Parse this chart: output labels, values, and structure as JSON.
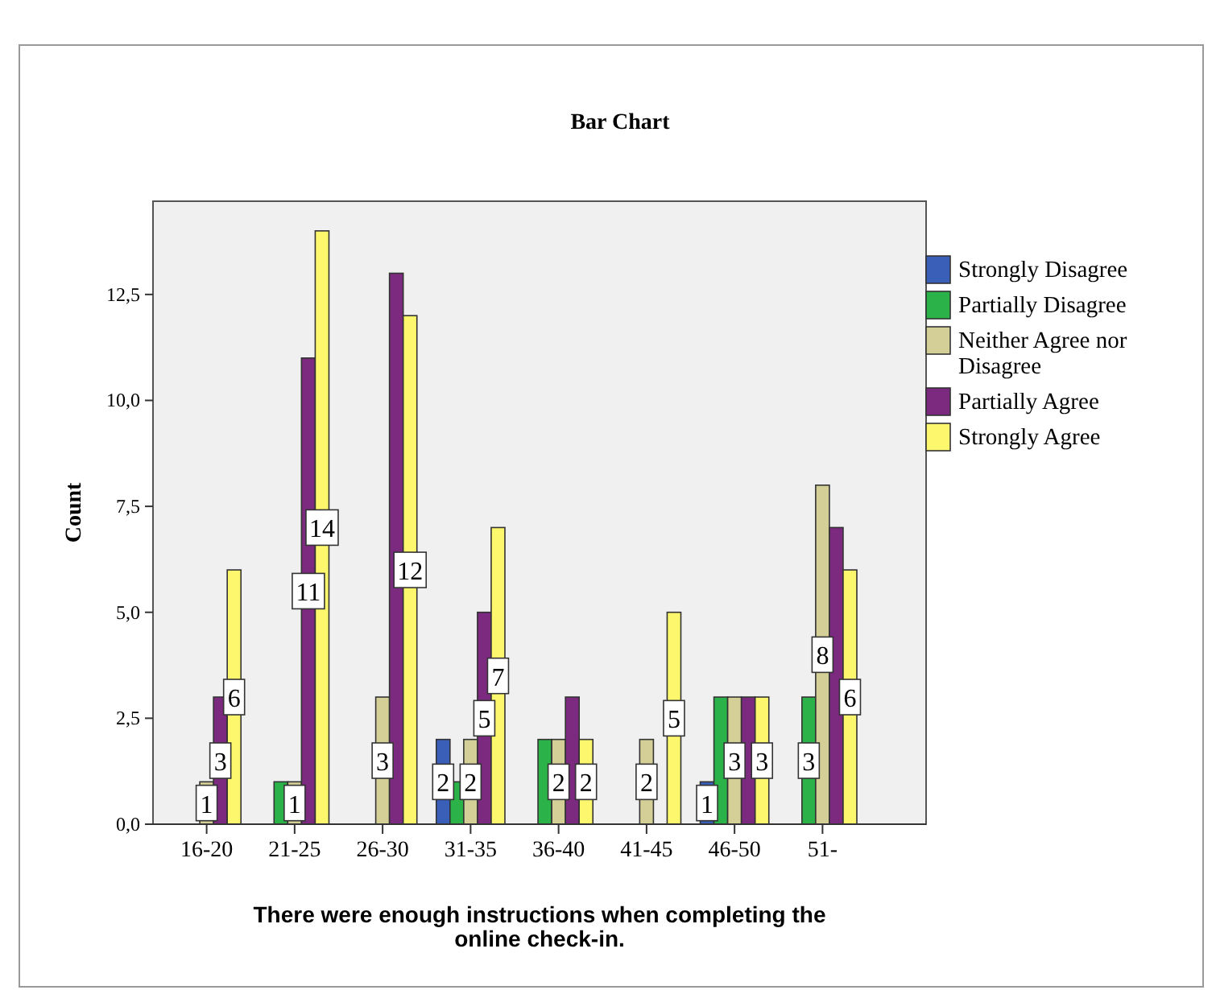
{
  "chart_data": {
    "type": "bar",
    "title": "Bar Chart",
    "xlabel": "There were enough instructions when completing the online check-in.",
    "ylabel": "Count",
    "categories": [
      "16-20",
      "21-25",
      "26-30",
      "31-35",
      "36-40",
      "41-45",
      "46-50",
      "51-"
    ],
    "series": [
      {
        "name": "Strongly Disagree",
        "color": "#3a5fb8",
        "values": [
          null,
          null,
          null,
          2,
          null,
          null,
          1,
          null
        ],
        "value_labels": [
          null,
          null,
          null,
          "2",
          null,
          null,
          "1",
          null
        ]
      },
      {
        "name": "Partially Disagree",
        "color": "#2bb34a",
        "values": [
          null,
          1,
          null,
          1,
          2,
          null,
          3,
          3
        ],
        "value_labels": [
          null,
          null,
          null,
          null,
          null,
          null,
          null,
          "3"
        ]
      },
      {
        "name": "Neither Agree nor Disagree",
        "color": "#d4cf96",
        "values": [
          1,
          1,
          3,
          2,
          2,
          2,
          3,
          8
        ],
        "value_labels": [
          "1",
          "1",
          "3",
          "2",
          "2",
          "2",
          "3",
          "8"
        ]
      },
      {
        "name": "Partially Agree",
        "color": "#7b2a7f",
        "values": [
          3,
          11,
          13,
          5,
          3,
          null,
          3,
          7
        ],
        "value_labels": [
          "3",
          "11",
          null,
          "5",
          null,
          null,
          null,
          null
        ]
      },
      {
        "name": "Strongly Agree",
        "color": "#fdf76e",
        "values": [
          6,
          14,
          12,
          7,
          2,
          5,
          3,
          6
        ],
        "value_labels": [
          "6",
          "14",
          "12",
          "7",
          "2",
          "5",
          "3",
          "6"
        ]
      }
    ],
    "ylim": [
      0,
      14.7
    ],
    "yticks": [
      {
        "value": 0,
        "label": "0,0"
      },
      {
        "value": 2.5,
        "label": "2,5"
      },
      {
        "value": 5,
        "label": "5,0"
      },
      {
        "value": 7.5,
        "label": "7,5"
      },
      {
        "value": 10,
        "label": "10,0"
      },
      {
        "value": 12.5,
        "label": "12,5"
      }
    ],
    "grid": false,
    "legend": "right"
  }
}
